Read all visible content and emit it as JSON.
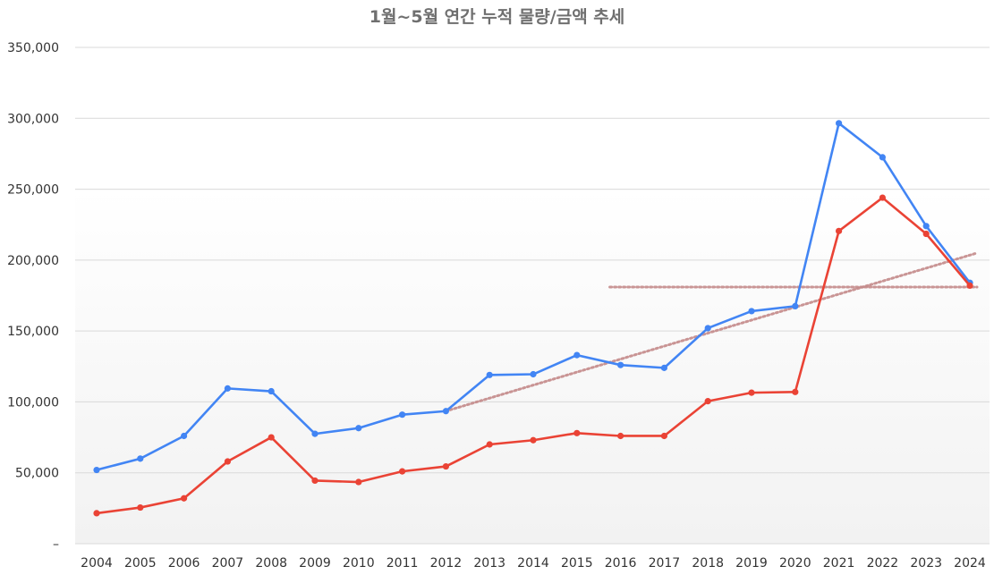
{
  "chart_data": {
    "type": "line",
    "title": "1월~5월 연간 누적 물량/금액 추세",
    "xlabel": "",
    "ylabel": "",
    "categories": [
      "2004",
      "2005",
      "2006",
      "2007",
      "2008",
      "2009",
      "2010",
      "2011",
      "2012",
      "2013",
      "2014",
      "2015",
      "2016",
      "2017",
      "2018",
      "2019",
      "2020",
      "2021",
      "2022",
      "2023",
      "2024"
    ],
    "ylim": [
      0,
      350000
    ],
    "yticks": [
      0,
      50000,
      100000,
      150000,
      200000,
      250000,
      300000,
      350000
    ],
    "ytick_labels": [
      "–",
      "50,000",
      "100,000",
      "150,000",
      "200,000",
      "250,000",
      "300,000",
      "350,000"
    ],
    "grid": true,
    "legend": "none",
    "series": [
      {
        "color": "#4285f4",
        "values": [
          52000,
          60000,
          76000,
          109500,
          107500,
          77500,
          81500,
          91000,
          93500,
          119000,
          119500,
          133000,
          126000,
          124000,
          152000,
          164000,
          167500,
          296500,
          272500,
          224000,
          184000
        ]
      },
      {
        "color": "#ea4335",
        "values": [
          21500,
          25500,
          32000,
          58000,
          75000,
          44500,
          43500,
          51000,
          54500,
          70000,
          73000,
          78000,
          76000,
          76000,
          100500,
          106500,
          107000,
          220500,
          244000,
          218500,
          182000
        ]
      }
    ],
    "annotations": [
      {
        "kind": "trend-line",
        "style": "dotted",
        "color": "#c48a8a",
        "from": {
          "x": "2012",
          "y": 93500
        },
        "to": {
          "x": "2024",
          "y": 205000
        }
      },
      {
        "kind": "reference-line",
        "style": "dotted",
        "color": "#c48a8a",
        "from": {
          "x": "2016",
          "y": 181000
        },
        "to": {
          "x": "2024",
          "y": 181000
        }
      }
    ]
  }
}
